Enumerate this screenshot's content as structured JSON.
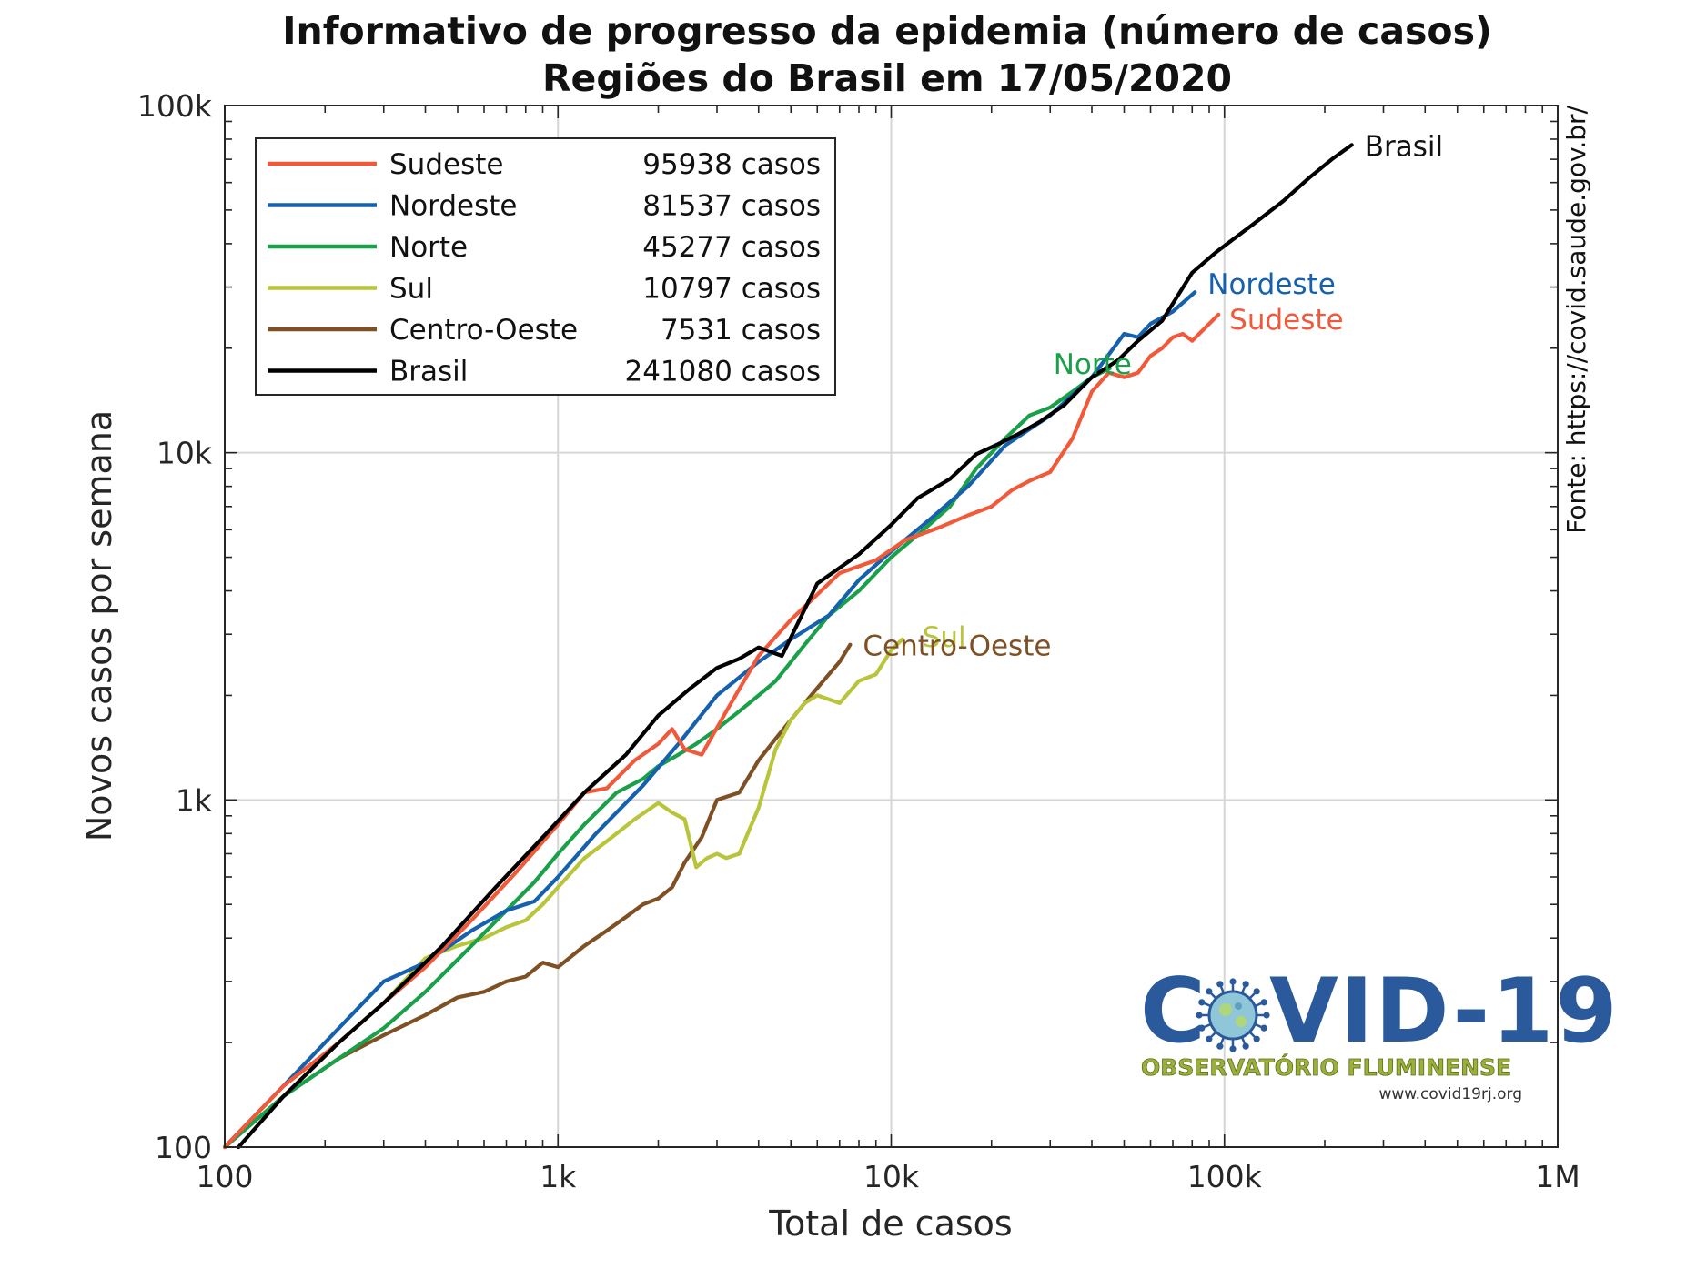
{
  "chart_data": {
    "type": "line",
    "title": "Informativo de progresso da epidemia (número de casos)",
    "subtitle": "Regiões do Brasil em 17/05/2020",
    "xlabel": "Total de casos",
    "ylabel": "Novos casos por semana",
    "x_scale": "log",
    "y_scale": "log",
    "xlim": [
      100,
      1000000
    ],
    "ylim": [
      100,
      100000
    ],
    "x_ticks": [
      {
        "value": 100,
        "label": "100"
      },
      {
        "value": 1000,
        "label": "1k"
      },
      {
        "value": 10000,
        "label": "10k"
      },
      {
        "value": 100000,
        "label": "100k"
      },
      {
        "value": 1000000,
        "label": "1M"
      }
    ],
    "y_ticks": [
      {
        "value": 100,
        "label": "100"
      },
      {
        "value": 1000,
        "label": "1k"
      },
      {
        "value": 10000,
        "label": "10k"
      },
      {
        "value": 100000,
        "label": "100k"
      }
    ],
    "grid": true,
    "legend_position": "top-left",
    "source": "Fonte: https://covid.saude.gov.br/",
    "series": [
      {
        "name": "Sudeste",
        "total": "95938 casos",
        "color": "#f05a3a",
        "end_label_color": "#f05a3a",
        "x": [
          100,
          150,
          220,
          300,
          400,
          550,
          750,
          1000,
          1200,
          1400,
          1700,
          2000,
          2200,
          2400,
          2700,
          3200,
          4000,
          5000,
          7000,
          9000,
          11000,
          14000,
          17000,
          20000,
          23000,
          26000,
          30000,
          35000,
          40000,
          45000,
          50000,
          55000,
          60000,
          65000,
          70000,
          75000,
          80000,
          88000,
          95938
        ],
        "y": [
          100,
          150,
          200,
          260,
          330,
          450,
          620,
          850,
          1050,
          1080,
          1300,
          1450,
          1600,
          1400,
          1350,
          1800,
          2600,
          3300,
          4500,
          4900,
          5600,
          6100,
          6600,
          7000,
          7800,
          8300,
          8800,
          11000,
          15000,
          17000,
          16500,
          17000,
          19000,
          20000,
          21500,
          22000,
          21000,
          23000,
          25000
        ]
      },
      {
        "name": "Nordeste",
        "total": "81537 casos",
        "color": "#1561ad",
        "end_label_color": "#1561ad",
        "x": [
          100,
          150,
          220,
          300,
          400,
          550,
          700,
          850,
          1000,
          1300,
          1800,
          2300,
          3000,
          4000,
          5000,
          6500,
          8000,
          10000,
          13000,
          17000,
          22000,
          30000,
          40000,
          50000,
          55000,
          60000,
          70000,
          81537
        ],
        "y": [
          100,
          150,
          220,
          300,
          340,
          420,
          480,
          510,
          600,
          800,
          1100,
          1450,
          2000,
          2500,
          2900,
          3400,
          4300,
          5200,
          6400,
          8000,
          10500,
          12800,
          16500,
          22000,
          21500,
          23500,
          25500,
          29000
        ]
      },
      {
        "name": "Norte",
        "total": "45277 casos",
        "color": "#1aa049",
        "end_label_color": "#1aa049",
        "x": [
          100,
          150,
          220,
          300,
          400,
          550,
          700,
          850,
          1000,
          1200,
          1500,
          1800,
          2000,
          2300,
          2600,
          3000,
          3500,
          4000,
          4500,
          5500,
          6500,
          8000,
          10000,
          12000,
          15000,
          18000,
          22000,
          26000,
          30000,
          35000,
          40000,
          45277
        ],
        "y": [
          100,
          140,
          180,
          220,
          280,
          380,
          480,
          580,
          700,
          850,
          1050,
          1150,
          1250,
          1350,
          1450,
          1600,
          1800,
          2000,
          2200,
          2800,
          3400,
          4000,
          5000,
          5800,
          7000,
          9000,
          11000,
          12800,
          13500,
          15000,
          16500,
          17500
        ]
      },
      {
        "name": "Sul",
        "total": "10797 casos",
        "color": "#b8c53a",
        "end_label_color": "#b8c53a",
        "x": [
          100,
          150,
          220,
          300,
          400,
          500,
          600,
          700,
          800,
          900,
          1000,
          1200,
          1400,
          1700,
          2000,
          2200,
          2400,
          2600,
          2800,
          3000,
          3200,
          3500,
          4000,
          4500,
          5000,
          5500,
          6000,
          7000,
          8000,
          9000,
          10000,
          10797
        ],
        "y": [
          100,
          140,
          200,
          260,
          350,
          380,
          400,
          430,
          450,
          500,
          560,
          680,
          760,
          880,
          980,
          920,
          880,
          640,
          680,
          700,
          680,
          700,
          950,
          1400,
          1700,
          1900,
          2000,
          1900,
          2200,
          2300,
          2700,
          2900
        ]
      },
      {
        "name": "Centro-Oeste",
        "total": "7531 casos",
        "color": "#7e5023",
        "end_label_color": "#7e5023",
        "x": [
          100,
          150,
          220,
          300,
          400,
          500,
          600,
          700,
          800,
          900,
          1000,
          1200,
          1400,
          1600,
          1800,
          2000,
          2200,
          2400,
          2700,
          3000,
          3500,
          4000,
          4500,
          5000,
          5500,
          6000,
          6500,
          7000,
          7531
        ],
        "y": [
          100,
          140,
          180,
          210,
          240,
          270,
          280,
          300,
          310,
          340,
          330,
          380,
          420,
          460,
          500,
          520,
          560,
          660,
          780,
          1000,
          1050,
          1300,
          1500,
          1700,
          1900,
          2100,
          2300,
          2500,
          2800
        ]
      },
      {
        "name": "Brasil",
        "total": "241080 casos",
        "color": "#000000",
        "end_label_color": "#111111",
        "x": [
          110,
          150,
          220,
          300,
          450,
          650,
          900,
          1200,
          1600,
          2000,
          2500,
          3000,
          3500,
          4000,
          4700,
          6000,
          8000,
          10000,
          12000,
          15000,
          18000,
          21000,
          24000,
          28000,
          33000,
          40000,
          48000,
          55000,
          65000,
          80000,
          95000,
          120000,
          150000,
          180000,
          210000,
          241080
        ],
        "y": [
          100,
          140,
          200,
          260,
          380,
          560,
          780,
          1050,
          1350,
          1750,
          2100,
          2400,
          2550,
          2750,
          2600,
          4200,
          5100,
          6200,
          7400,
          8400,
          9900,
          10600,
          11300,
          12300,
          13700,
          16500,
          18500,
          21000,
          24000,
          33000,
          38000,
          45000,
          53000,
          62000,
          70000,
          77000
        ]
      }
    ]
  },
  "logo": {
    "brand": "COVID-19",
    "subtitle": "OBSERVATÓRIO FLUMINENSE",
    "url": "www.covid19rj.org"
  }
}
